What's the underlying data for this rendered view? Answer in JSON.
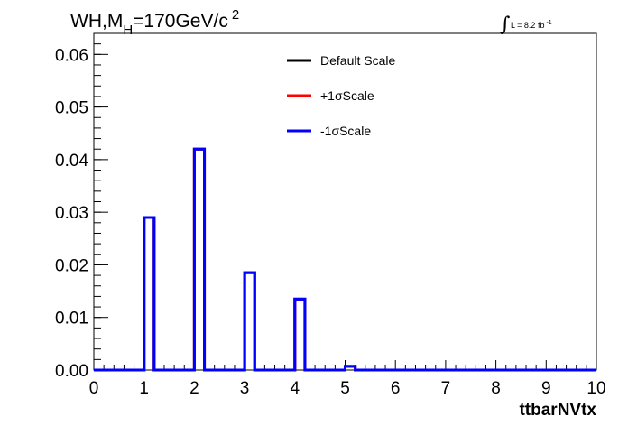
{
  "chart_data": {
    "type": "bar",
    "title": "WH,M",
    "title_sub": "H",
    "title_rest": "=170GeV/c",
    "title_sup": "2",
    "lumi": {
      "text": "L = 8.2 fb",
      "sup": "-1",
      "symbol": "∫"
    },
    "xlabel": "ttbarNVtx",
    "ylabel": "",
    "xlim": [
      0,
      10
    ],
    "ylim": [
      0,
      0.064
    ],
    "x_ticks": [
      0,
      1,
      2,
      3,
      4,
      5,
      6,
      7,
      8,
      9,
      10
    ],
    "x_tick_labels": [
      "0",
      "1",
      "2",
      "3",
      "4",
      "5",
      "6",
      "7",
      "8",
      "9",
      "10"
    ],
    "y_ticks": [
      0,
      0.01,
      0.02,
      0.03,
      0.04,
      0.05,
      0.06
    ],
    "y_tick_labels": [
      "0.00",
      "0.01",
      "0.02",
      "0.03",
      "0.04",
      "0.05",
      "0.06"
    ],
    "bin_width": 0.2,
    "bin_edges_start": 0,
    "grid": false,
    "legend_position": "top-center",
    "series": [
      {
        "name": "Default Scale",
        "color": "#000000",
        "bins": [
          {
            "x": 1.0,
            "value": 0.029
          },
          {
            "x": 2.0,
            "value": 0.042
          },
          {
            "x": 3.0,
            "value": 0.0185
          },
          {
            "x": 4.0,
            "value": 0.0135
          },
          {
            "x": 5.0,
            "value": 0.0007
          }
        ]
      },
      {
        "name": "+1σScale",
        "color": "#ff0000",
        "bins": [
          {
            "x": 1.0,
            "value": 0.029
          },
          {
            "x": 2.0,
            "value": 0.042
          },
          {
            "x": 3.0,
            "value": 0.0185
          },
          {
            "x": 4.0,
            "value": 0.0135
          },
          {
            "x": 5.0,
            "value": 0.0007
          }
        ]
      },
      {
        "name": "-1σScale",
        "color": "#0000ff",
        "bins": [
          {
            "x": 1.0,
            "value": 0.029
          },
          {
            "x": 2.0,
            "value": 0.042
          },
          {
            "x": 3.0,
            "value": 0.0185
          },
          {
            "x": 4.0,
            "value": 0.0135
          },
          {
            "x": 5.0,
            "value": 0.0007
          }
        ]
      }
    ]
  }
}
